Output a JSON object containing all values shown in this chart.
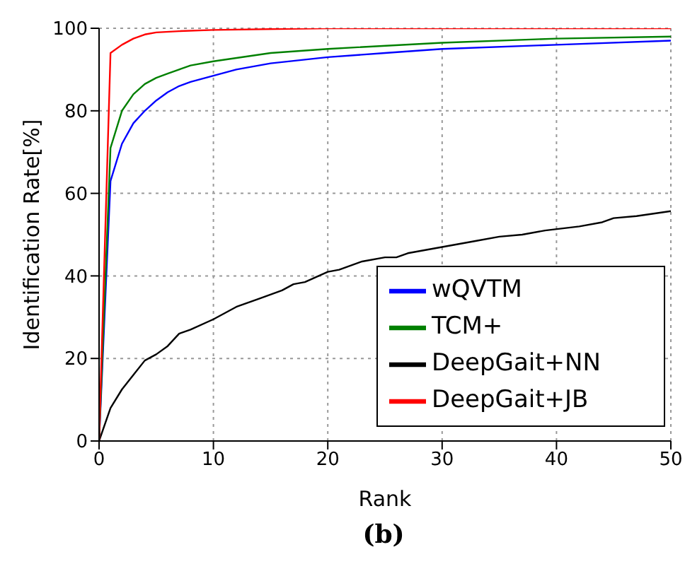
{
  "chart_data": {
    "type": "line",
    "xlabel": "Rank",
    "ylabel": "Identification Rate[%]",
    "annotations": [
      "(b)"
    ],
    "xlim": [
      0,
      50
    ],
    "ylim": [
      0,
      100
    ],
    "xticks": [
      0,
      10,
      20,
      30,
      40,
      50
    ],
    "yticks": [
      0,
      20,
      40,
      60,
      80,
      100
    ],
    "grid": true,
    "legend": "bottom right",
    "line_style": "solid",
    "marker": "none",
    "series": [
      {
        "name": "wQVTM",
        "color": "#0000ff",
        "x": [
          0,
          1,
          2,
          3,
          4,
          5,
          6,
          7,
          8,
          10,
          12,
          15,
          20,
          25,
          30,
          40,
          50
        ],
        "values": [
          0,
          63,
          72,
          77,
          80,
          82.5,
          84.5,
          86,
          87,
          88.5,
          90,
          91.5,
          93,
          94,
          95,
          96,
          97
        ]
      },
      {
        "name": "TCM+",
        "color": "#008000",
        "x": [
          0,
          1,
          2,
          3,
          4,
          5,
          6,
          7,
          8,
          10,
          15,
          20,
          30,
          40,
          50
        ],
        "values": [
          0,
          71,
          80,
          84,
          86.5,
          88,
          89,
          90,
          91,
          92,
          94,
          95,
          96.5,
          97.5,
          98
        ]
      },
      {
        "name": "DeepGait+NN",
        "color": "#000000",
        "x": [
          0,
          1,
          2,
          3,
          4,
          5,
          6,
          7,
          8,
          10,
          12,
          14,
          16,
          17,
          18,
          20,
          21,
          23,
          25,
          26,
          27,
          30,
          33,
          35,
          37,
          39,
          42,
          44,
          45,
          47,
          50
        ],
        "values": [
          0,
          8,
          12.5,
          16,
          19.5,
          21,
          23,
          26,
          27,
          29.5,
          32.5,
          34.5,
          36.5,
          38,
          38.5,
          41,
          41.5,
          43.5,
          44.5,
          44.5,
          45.5,
          47,
          48.5,
          49.5,
          50,
          51,
          52,
          53,
          54,
          54.5,
          55.7
        ]
      },
      {
        "name": "DeepGait+JB",
        "color": "#ff0000",
        "x": [
          0,
          1,
          2,
          3,
          4,
          5,
          7,
          10,
          20,
          50
        ],
        "values": [
          0,
          94,
          96,
          97.5,
          98.5,
          99,
          99.3,
          99.6,
          100,
          100
        ]
      }
    ]
  }
}
